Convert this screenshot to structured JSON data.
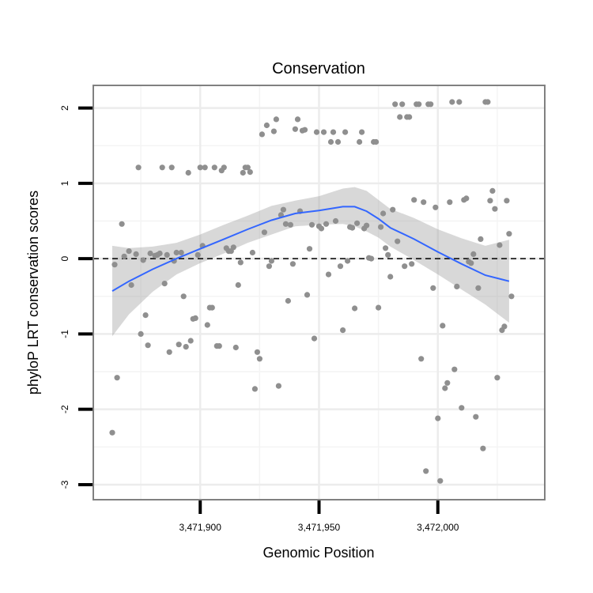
{
  "chart_data": {
    "type": "scatter",
    "title": "Conservation",
    "xlabel": "Genomic Position",
    "ylabel": "phyloP LRT conservation scores",
    "xlim": [
      3471855,
      3472045
    ],
    "ylim": [
      -3.2,
      2.3
    ],
    "x_ticks": [
      {
        "value": 3471900,
        "label": "3,471,900"
      },
      {
        "value": 3471950,
        "label": "3,471,950"
      },
      {
        "value": 3472000,
        "label": "3,472,000"
      }
    ],
    "y_ticks": [
      {
        "value": 2,
        "label": "2"
      },
      {
        "value": 1,
        "label": "1"
      },
      {
        "value": 0,
        "label": "0"
      },
      {
        "value": -1,
        "label": "-1"
      },
      {
        "value": -2,
        "label": "-2"
      },
      {
        "value": -3,
        "label": "-3"
      }
    ],
    "reference_line": {
      "y": 0,
      "style": "dashed",
      "color": "#000000"
    },
    "points": [
      [
        3471863,
        -2.31
      ],
      [
        3471864,
        -0.08
      ],
      [
        3471865,
        -1.58
      ],
      [
        3471867,
        0.46
      ],
      [
        3471868,
        0.03
      ],
      [
        3471870,
        0.1
      ],
      [
        3471871,
        -0.35
      ],
      [
        3471873,
        0.06
      ],
      [
        3471874,
        1.21
      ],
      [
        3471875,
        -1.0
      ],
      [
        3471876,
        -0.02
      ],
      [
        3471877,
        -0.75
      ],
      [
        3471878,
        -1.15
      ],
      [
        3471879,
        0.07
      ],
      [
        3471881,
        0.04
      ],
      [
        3471882,
        0.05
      ],
      [
        3471883,
        0.07
      ],
      [
        3471884,
        1.21
      ],
      [
        3471885,
        -0.33
      ],
      [
        3471886,
        0.05
      ],
      [
        3471887,
        -1.24
      ],
      [
        3471888,
        1.21
      ],
      [
        3471889,
        -0.03
      ],
      [
        3471890,
        0.08
      ],
      [
        3471891,
        -1.14
      ],
      [
        3471892,
        0.08
      ],
      [
        3471893,
        -0.5
      ],
      [
        3471894,
        -1.17
      ],
      [
        3471895,
        1.14
      ],
      [
        3471896,
        -1.09
      ],
      [
        3471897,
        -0.8
      ],
      [
        3471898,
        -0.79
      ],
      [
        3471899,
        0.05
      ],
      [
        3471900,
        1.21
      ],
      [
        3471901,
        0.17
      ],
      [
        3471902,
        1.21
      ],
      [
        3471903,
        -0.88
      ],
      [
        3471904,
        -0.65
      ],
      [
        3471905,
        -0.65
      ],
      [
        3471906,
        1.21
      ],
      [
        3471907,
        -1.16
      ],
      [
        3471908,
        -1.16
      ],
      [
        3471909,
        1.17
      ],
      [
        3471910,
        1.21
      ],
      [
        3471911,
        0.14
      ],
      [
        3471912,
        0.1
      ],
      [
        3471913,
        0.1
      ],
      [
        3471914,
        0.15
      ],
      [
        3471915,
        -1.18
      ],
      [
        3471916,
        -0.35
      ],
      [
        3471917,
        -0.05
      ],
      [
        3471918,
        1.14
      ],
      [
        3471919,
        1.21
      ],
      [
        3471920,
        1.21
      ],
      [
        3471921,
        1.15
      ],
      [
        3471922,
        0.08
      ],
      [
        3471923,
        -1.73
      ],
      [
        3471924,
        -1.24
      ],
      [
        3471925,
        -1.33
      ],
      [
        3471926,
        1.65
      ],
      [
        3471927,
        0.35
      ],
      [
        3471928,
        1.77
      ],
      [
        3471929,
        -0.1
      ],
      [
        3471930,
        -0.03
      ],
      [
        3471931,
        1.69
      ],
      [
        3471932,
        1.85
      ],
      [
        3471933,
        -1.69
      ],
      [
        3471934,
        0.58
      ],
      [
        3471935,
        0.65
      ],
      [
        3471936,
        0.46
      ],
      [
        3471937,
        -0.56
      ],
      [
        3471938,
        0.45
      ],
      [
        3471939,
        -0.07
      ],
      [
        3471940,
        1.72
      ],
      [
        3471941,
        1.85
      ],
      [
        3471942,
        0.63
      ],
      [
        3471943,
        1.7
      ],
      [
        3471944,
        1.71
      ],
      [
        3471945,
        -0.48
      ],
      [
        3471946,
        0.13
      ],
      [
        3471947,
        0.45
      ],
      [
        3471948,
        -1.06
      ],
      [
        3471949,
        1.68
      ],
      [
        3471950,
        0.43
      ],
      [
        3471951,
        0.4
      ],
      [
        3471952,
        1.68
      ],
      [
        3471953,
        0.46
      ],
      [
        3471954,
        -0.21
      ],
      [
        3471955,
        1.55
      ],
      [
        3471956,
        1.68
      ],
      [
        3471957,
        0.5
      ],
      [
        3471958,
        1.55
      ],
      [
        3471959,
        -0.1
      ],
      [
        3471960,
        -0.95
      ],
      [
        3471961,
        1.68
      ],
      [
        3471962,
        -0.03
      ],
      [
        3471963,
        0.42
      ],
      [
        3471964,
        0.41
      ],
      [
        3471965,
        -0.66
      ],
      [
        3471966,
        0.47
      ],
      [
        3471967,
        1.55
      ],
      [
        3471968,
        1.68
      ],
      [
        3471969,
        0.4
      ],
      [
        3471970,
        0.44
      ],
      [
        3471971,
        0.01
      ],
      [
        3471972,
        0.0
      ],
      [
        3471973,
        1.55
      ],
      [
        3471974,
        1.55
      ],
      [
        3471975,
        -0.65
      ],
      [
        3471976,
        0.42
      ],
      [
        3471977,
        0.6
      ],
      [
        3471978,
        0.14
      ],
      [
        3471979,
        0.05
      ],
      [
        3471980,
        -0.24
      ],
      [
        3471981,
        0.65
      ],
      [
        3471982,
        2.05
      ],
      [
        3471983,
        0.23
      ],
      [
        3471984,
        1.88
      ],
      [
        3471985,
        2.05
      ],
      [
        3471986,
        -0.1
      ],
      [
        3471987,
        1.88
      ],
      [
        3471988,
        1.88
      ],
      [
        3471989,
        -0.07
      ],
      [
        3471990,
        0.78
      ],
      [
        3471991,
        2.05
      ],
      [
        3471992,
        2.05
      ],
      [
        3471993,
        -1.33
      ],
      [
        3471994,
        0.75
      ],
      [
        3471995,
        -2.82
      ],
      [
        3471996,
        2.05
      ],
      [
        3471997,
        2.05
      ],
      [
        3471998,
        -0.39
      ],
      [
        3471999,
        0.68
      ],
      [
        3472000,
        -2.12
      ],
      [
        3472001,
        -2.95
      ],
      [
        3472002,
        -0.89
      ],
      [
        3472003,
        -1.72
      ],
      [
        3472004,
        -1.65
      ],
      [
        3472005,
        0.75
      ],
      [
        3472006,
        2.08
      ],
      [
        3472007,
        -1.47
      ],
      [
        3472008,
        -0.37
      ],
      [
        3472009,
        2.08
      ],
      [
        3472010,
        -1.98
      ],
      [
        3472011,
        0.78
      ],
      [
        3472012,
        0.8
      ],
      [
        3472013,
        -0.04
      ],
      [
        3472014,
        -0.06
      ],
      [
        3472015,
        0.06
      ],
      [
        3472016,
        -2.1
      ],
      [
        3472017,
        -0.39
      ],
      [
        3472018,
        0.26
      ],
      [
        3472019,
        -2.52
      ],
      [
        3472020,
        2.08
      ],
      [
        3472021,
        2.08
      ],
      [
        3472022,
        0.77
      ],
      [
        3472023,
        0.9
      ],
      [
        3472024,
        0.66
      ],
      [
        3472025,
        -1.58
      ],
      [
        3472026,
        0.18
      ],
      [
        3472027,
        -0.95
      ],
      [
        3472028,
        -0.9
      ],
      [
        3472029,
        0.77
      ],
      [
        3472030,
        0.33
      ],
      [
        3472031,
        -0.5
      ]
    ],
    "smooth_line": {
      "color": "#3366ff",
      "x": [
        3471863,
        3471870,
        3471880,
        3471890,
        3471900,
        3471910,
        3471920,
        3471930,
        3471940,
        3471950,
        3471960,
        3471965,
        3471970,
        3471975,
        3471980,
        3471990,
        3472000,
        3472010,
        3472020,
        3472030
      ],
      "y": [
        -0.43,
        -0.3,
        -0.14,
        0.0,
        0.13,
        0.26,
        0.39,
        0.51,
        0.6,
        0.64,
        0.69,
        0.69,
        0.63,
        0.53,
        0.41,
        0.26,
        0.09,
        -0.07,
        -0.22,
        -0.3
      ],
      "ci_lower": [
        -1.03,
        -0.74,
        -0.44,
        -0.21,
        -0.06,
        0.07,
        0.21,
        0.32,
        0.43,
        0.45,
        0.46,
        0.43,
        0.36,
        0.28,
        0.16,
        -0.02,
        -0.21,
        -0.41,
        -0.61,
        -0.85
      ],
      "ci_upper": [
        0.17,
        0.14,
        0.16,
        0.21,
        0.32,
        0.45,
        0.57,
        0.7,
        0.77,
        0.83,
        0.93,
        0.95,
        0.9,
        0.78,
        0.66,
        0.54,
        0.39,
        0.27,
        0.17,
        0.25
      ]
    }
  }
}
